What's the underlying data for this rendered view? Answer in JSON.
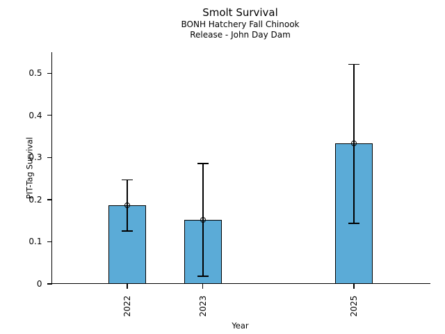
{
  "chart_data": {
    "type": "bar",
    "title": "Smolt Survival",
    "subtitle": [
      "BONH Hatchery Fall Chinook",
      "Release - John Day Dam"
    ],
    "xlabel": "Year",
    "ylabel": "PIT-Tag Survival",
    "categories": [
      "2022",
      "2023",
      "2025"
    ],
    "x": [
      2022,
      2023,
      2025
    ],
    "values": [
      0.186,
      0.152,
      0.333
    ],
    "error_low": [
      0.125,
      0.018,
      0.144
    ],
    "error_high": [
      0.247,
      0.286,
      0.521
    ],
    "xlim": [
      2021,
      2026
    ],
    "ylim": [
      0,
      0.55
    ],
    "yticks": [
      0,
      0.1,
      0.2,
      0.3,
      0.4,
      0.5
    ],
    "ytick_labels": [
      "0",
      "0.1",
      "0.2",
      "0.3",
      "0.4",
      "0.5"
    ],
    "xtick_labels": [
      "2022",
      "2023",
      "2025"
    ],
    "bar_width": 0.5,
    "bar_color": "#5BABD7",
    "bar_edge_color": "#000000",
    "error_color": "#000000",
    "marker": "open-circle",
    "grid": false,
    "legend": null
  }
}
